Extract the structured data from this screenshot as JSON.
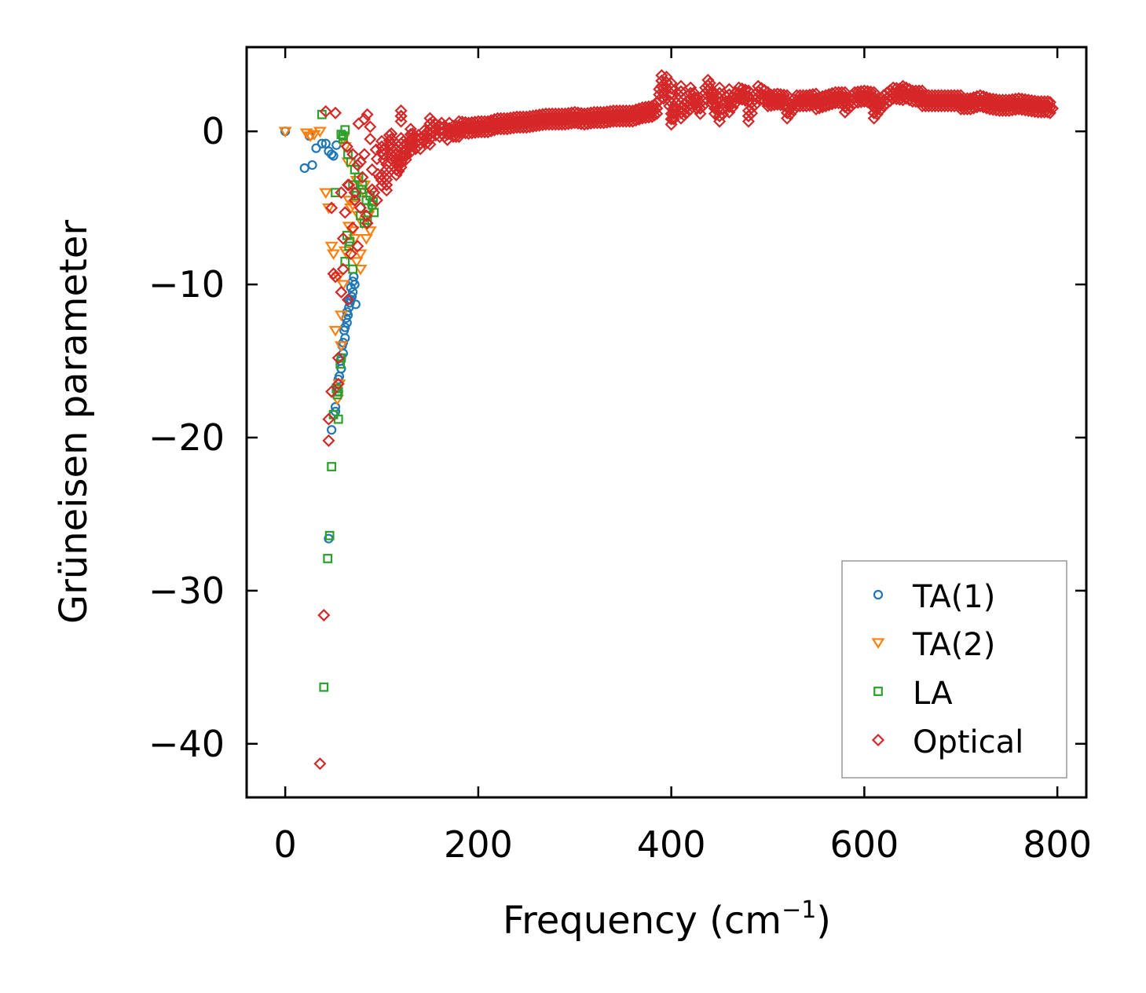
{
  "chart_data": {
    "type": "scatter",
    "title": "",
    "xlabel": "Frequency (cm",
    "xlabel_sup": "−1",
    "xlabel_suffix": ")",
    "ylabel": "Grüneisen parameter",
    "xlim": [
      -40,
      830
    ],
    "ylim": [
      -43.5,
      5.5
    ],
    "xticks": [
      0,
      200,
      400,
      600,
      800
    ],
    "xtick_labels": [
      "0",
      "200",
      "400",
      "600",
      "800"
    ],
    "yticks": [
      0,
      -10,
      -20,
      -30,
      -40
    ],
    "ytick_labels": [
      "0",
      "−10",
      "−20",
      "−30",
      "−40"
    ],
    "grid": false,
    "legend_position": "lower-right",
    "series": [
      {
        "name": "TA(1)",
        "marker": "circle",
        "color": "#1f77b4",
        "x": [
          0,
          20,
          25,
          28,
          32,
          38,
          42,
          45,
          48,
          50,
          53,
          55,
          58,
          60,
          62,
          64,
          65,
          66,
          68,
          70,
          72,
          56,
          54,
          52,
          57,
          59,
          61,
          63,
          67,
          69,
          50,
          52,
          48,
          45,
          55,
          58,
          60,
          62,
          64,
          66,
          68,
          70,
          71,
          73
        ],
        "y": [
          0,
          -2.4,
          -0.3,
          -2.2,
          -1.1,
          -0.8,
          -0.8,
          -1.3,
          -1.5,
          -1.6,
          -0.9,
          -17.0,
          -15.5,
          -14.5,
          -13.5,
          -12.5,
          -12.0,
          -11.5,
          -11.0,
          -10.5,
          -10.0,
          -16.0,
          -16.8,
          -18.3,
          -15.0,
          -14.0,
          -13.0,
          -12.2,
          -11.2,
          -10.8,
          -18.5,
          -18.0,
          -19.5,
          -26.6,
          -16.2,
          -14.8,
          -13.8,
          -12.8,
          -11.8,
          -11.0,
          -10.2,
          -9.8,
          -9.5,
          -11.3
        ]
      },
      {
        "name": "TA(2)",
        "marker": "triangle",
        "color": "#ff7f0e",
        "x": [
          0,
          22,
          26,
          30,
          36,
          42,
          45,
          48,
          50,
          52,
          55,
          58,
          60,
          62,
          64,
          66,
          68,
          70,
          72,
          74,
          76,
          78,
          80,
          82,
          84,
          86,
          88,
          90,
          56,
          54,
          58,
          62,
          66,
          70,
          74,
          78,
          82,
          60,
          65
        ],
        "y": [
          0,
          -0.1,
          -0.3,
          -0.2,
          0,
          -4.0,
          -5.0,
          -7.5,
          -8.0,
          -13.0,
          -9.5,
          -14.0,
          -10.0,
          -1.0,
          -8.0,
          -4.5,
          -5.0,
          -6.5,
          -7.0,
          -8.5,
          -5.5,
          -9.0,
          -6.0,
          -4.0,
          -7.0,
          -5.5,
          -6.5,
          -5.0,
          -16.5,
          -17.5,
          -12.0,
          -7.8,
          -6.2,
          -4.8,
          -3.2,
          -8.0,
          -3.5,
          -0.5,
          -2.0
        ]
      },
      {
        "name": "LA",
        "marker": "square",
        "color": "#2ca02c",
        "x": [
          40,
          38,
          44,
          46,
          48,
          52,
          55,
          58,
          60,
          62,
          65,
          68,
          70,
          72,
          74,
          76,
          78,
          80,
          82,
          84,
          86,
          88,
          90,
          92,
          58,
          60,
          64,
          66,
          70,
          55,
          50,
          54,
          62,
          67,
          73,
          79,
          85,
          91,
          53,
          57
        ],
        "y": [
          -36.3,
          1.1,
          -27.9,
          -26.4,
          -21.9,
          -4.0,
          -17.0,
          -14.8,
          -0.3,
          0.1,
          -1.5,
          -2.0,
          -3.5,
          -2.5,
          -4.0,
          -3.0,
          -5.5,
          -3.5,
          -6.0,
          -4.5,
          -5.0,
          -4.2,
          -4.8,
          -5.3,
          -0.2,
          -0.5,
          -6.8,
          -7.5,
          -9.0,
          -18.8,
          -18.5,
          -17.2,
          -8.5,
          -7.2,
          -4.2,
          -3.8,
          -5.8,
          -4.6,
          -16.8,
          -15.2
        ]
      },
      {
        "name": "Optical",
        "marker": "diamond",
        "color": "#d62728",
        "x": [
          36,
          40,
          42,
          45,
          48,
          50,
          52,
          55,
          58,
          60,
          62,
          65,
          68,
          70,
          72,
          75,
          78,
          80,
          82,
          85,
          88,
          90,
          92,
          95,
          98,
          100,
          105,
          110,
          115,
          120,
          125,
          130,
          140,
          150,
          160,
          170,
          180,
          190,
          200,
          210,
          220,
          230,
          240,
          250,
          260,
          270,
          280,
          290,
          300,
          310,
          320,
          330,
          340,
          350,
          360,
          370,
          380,
          385,
          390,
          392,
          395,
          398,
          400,
          405,
          410,
          420,
          430,
          438,
          440,
          445,
          450,
          460,
          470,
          480,
          490,
          500,
          510,
          520,
          530,
          540,
          550,
          560,
          570,
          580,
          590,
          600,
          610,
          620,
          630,
          640,
          650,
          660,
          670,
          680,
          690,
          700,
          710,
          720,
          730,
          740,
          750,
          760,
          770,
          780,
          790,
          795,
          45,
          55,
          65,
          75,
          85,
          95,
          105,
          115,
          125,
          135,
          48,
          52,
          58,
          64,
          70,
          76,
          82,
          88,
          94,
          100,
          110,
          120,
          130,
          60,
          66,
          72,
          78,
          84,
          90,
          96,
          102,
          108,
          114,
          120,
          126,
          132,
          138,
          144,
          150,
          156,
          162,
          168,
          174,
          180,
          400,
          410,
          420,
          450,
          460,
          480,
          500,
          520,
          550,
          580,
          610,
          640,
          660,
          700
        ],
        "y": [
          -41.3,
          -31.6,
          1.3,
          -20.2,
          -17.0,
          -9.3,
          1.2,
          -14.8,
          -10.5,
          -9.0,
          -5.3,
          -3.5,
          -8.0,
          -6.3,
          -4.0,
          -2.2,
          -5.0,
          -3.0,
          -1.5,
          1.1,
          -0.5,
          -2.5,
          -4.0,
          -1.8,
          -3.0,
          -1.0,
          -2.5,
          -1.5,
          -1.8,
          -2.0,
          -1.2,
          -1.0,
          -0.8,
          -0.5,
          0.0,
          0.2,
          0.0,
          0.2,
          0.3,
          0.3,
          0.5,
          0.5,
          0.6,
          0.6,
          0.7,
          0.8,
          0.8,
          0.8,
          0.9,
          0.8,
          0.9,
          0.9,
          1.0,
          1.0,
          1.0,
          1.2,
          1.3,
          1.5,
          3.3,
          2.5,
          3.2,
          2.0,
          2.8,
          1.5,
          2.6,
          1.8,
          1.5,
          3.0,
          2.8,
          1.5,
          2.5,
          2.4,
          2.5,
          2.3,
          2.6,
          2.2,
          2.1,
          2.0,
          2.0,
          2.0,
          2.1,
          2.0,
          2.2,
          2.2,
          2.2,
          2.3,
          2.2,
          2.0,
          2.5,
          2.4,
          2.3,
          2.3,
          2.0,
          2.0,
          2.0,
          2.0,
          1.8,
          2.0,
          1.8,
          1.7,
          1.7,
          1.8,
          1.7,
          1.6,
          1.6,
          1.5,
          -18.8,
          -16.5,
          -11.0,
          -7.5,
          -6.0,
          -4.5,
          -3.5,
          -2.5,
          -1.5,
          -0.8,
          -5.0,
          -9.5,
          -4.0,
          -1.0,
          -1.5,
          0.5,
          0.8,
          0.3,
          -1.2,
          -3.2,
          -0.5,
          1.0,
          -0.2,
          -7.0,
          -3.5,
          -4.5,
          -2.0,
          -5.5,
          -3.8,
          -2.8,
          -1.5,
          -0.6,
          -1.5,
          -0.8,
          -1.2,
          -0.5,
          -0.6,
          -0.3,
          0.5,
          0.1,
          0.2,
          -0.2,
          0.0,
          0.3,
          0.8,
          1.2,
          2.5,
          1.0,
          1.6,
          1.0,
          2.0,
          1.2,
          1.8,
          1.6,
          1.2,
          2.6,
          2.0,
          1.8
        ]
      }
    ]
  }
}
